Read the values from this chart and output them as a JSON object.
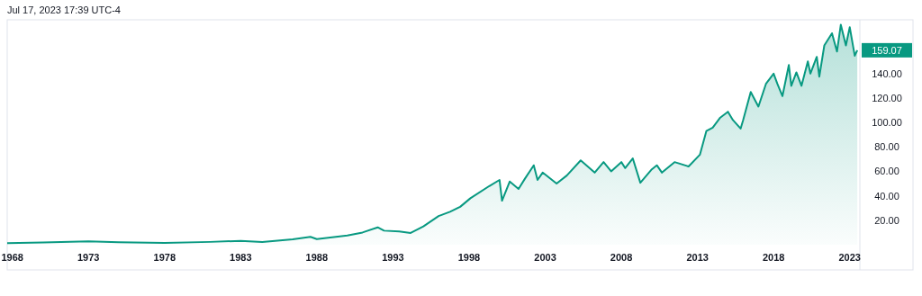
{
  "chart_data": {
    "type": "area",
    "title": "Jul 17, 2023 17:39 UTC-4",
    "color": "#089981",
    "x": [
      "1967-09",
      "1970-01",
      "1973-01",
      "1975-01",
      "1978-01",
      "1981-01",
      "1983-01",
      "1984-06",
      "1986-06",
      "1987-08",
      "1988-01",
      "1990-01",
      "1991-01",
      "1992-01",
      "1992-06",
      "1993-06",
      "1994-03",
      "1995-01",
      "1996-01",
      "1996-10",
      "1997-06",
      "1998-02",
      "1999-05",
      "2000-01",
      "2000-03",
      "2000-09",
      "2001-04",
      "2001-09",
      "2002-04",
      "2002-07",
      "2002-11",
      "2003-10",
      "2004-06",
      "2005-05",
      "2006-04",
      "2006-11",
      "2007-05",
      "2008-01",
      "2008-04",
      "2008-10",
      "2009-04",
      "2010-01",
      "2010-05",
      "2010-09",
      "2011-07",
      "2012-06",
      "2013-03",
      "2013-08",
      "2014-01",
      "2014-07",
      "2015-01",
      "2015-05",
      "2015-11",
      "2016-01",
      "2016-07",
      "2017-01",
      "2017-07",
      "2018-01",
      "2018-04",
      "2018-08",
      "2019-01",
      "2019-03",
      "2019-07",
      "2019-11",
      "2020-04",
      "2020-06",
      "2020-11",
      "2021-01",
      "2021-05",
      "2021-11",
      "2022-03",
      "2022-06",
      "2022-10",
      "2023-01",
      "2023-05",
      "2023-07"
    ],
    "values": [
      1.3,
      1.8,
      2.7,
      2.0,
      1.5,
      2.3,
      3.2,
      2.2,
      4.5,
      6.4,
      4.6,
      7.6,
      10,
      14.2,
      11.5,
      10.8,
      9.6,
      15,
      23.5,
      27,
      31,
      38,
      48,
      53,
      36,
      51.7,
      45.6,
      54,
      65,
      53,
      59,
      50,
      56.6,
      69,
      59,
      67.6,
      60,
      67.6,
      62.7,
      70.6,
      50.7,
      61.7,
      65,
      59,
      67.6,
      64,
      73.7,
      93,
      95.8,
      104,
      108.8,
      102,
      95,
      102,
      125,
      113,
      131.6,
      140,
      131.6,
      121.6,
      147,
      130,
      141,
      130,
      150,
      140,
      153.7,
      137.5,
      163,
      173,
      158,
      180,
      163,
      178,
      154.6,
      159.07
    ],
    "xlim": [
      "1967-09",
      "2023-09"
    ],
    "xticks": [
      "1968",
      "1973",
      "1978",
      "1983",
      "1988",
      "1993",
      "1998",
      "2003",
      "2008",
      "2013",
      "2018",
      "2023"
    ],
    "ylim": [
      0,
      184
    ],
    "yticks": [
      {
        "value": 20,
        "label": "20.00"
      },
      {
        "value": 40,
        "label": "40.00"
      },
      {
        "value": 60,
        "label": "60.00"
      },
      {
        "value": 80,
        "label": "80.00"
      },
      {
        "value": 100,
        "label": "100.00"
      },
      {
        "value": 120,
        "label": "120.00"
      },
      {
        "value": 140,
        "label": "140.00"
      }
    ],
    "annotations": [
      "159.07"
    ]
  }
}
